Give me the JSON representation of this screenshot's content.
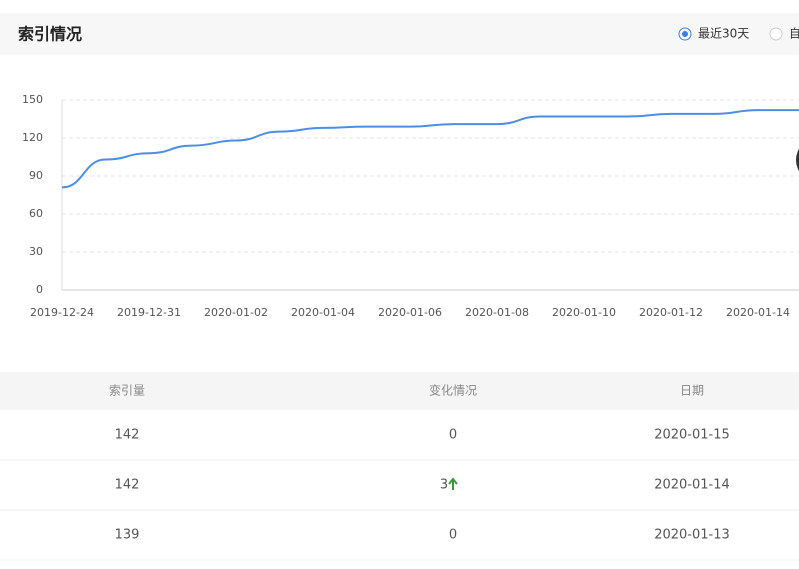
{
  "header": {
    "title": "索引情况",
    "options": [
      "最近30天",
      "自"
    ]
  },
  "chart_data": {
    "type": "line",
    "categories": [
      "2019-12-24",
      null,
      "2019-12-31",
      null,
      "2020-01-02",
      null,
      "2020-01-04",
      null,
      "2020-01-06",
      null,
      "2020-01-08",
      null,
      "2020-01-10",
      null,
      "2020-01-12",
      null,
      "2020-01-14",
      null
    ],
    "series": [
      {
        "color": "#4a8ee8",
        "values": [
          81,
          103,
          108,
          114,
          118,
          125,
          128,
          129,
          129,
          131,
          131,
          137,
          137,
          137,
          139,
          139,
          142,
          142
        ]
      }
    ],
    "ylim": [
      0,
      150
    ],
    "yticks": [
      0,
      30,
      60,
      90,
      120,
      150
    ],
    "grid": true
  },
  "table": {
    "columns": [
      "索引量",
      "变化情况",
      "日期"
    ],
    "rows": [
      [
        "142",
        "0",
        "2020-01-15"
      ],
      [
        "142",
        "3",
        "2020-01-14"
      ],
      [
        "139",
        "0",
        "2020-01-13"
      ]
    ]
  }
}
